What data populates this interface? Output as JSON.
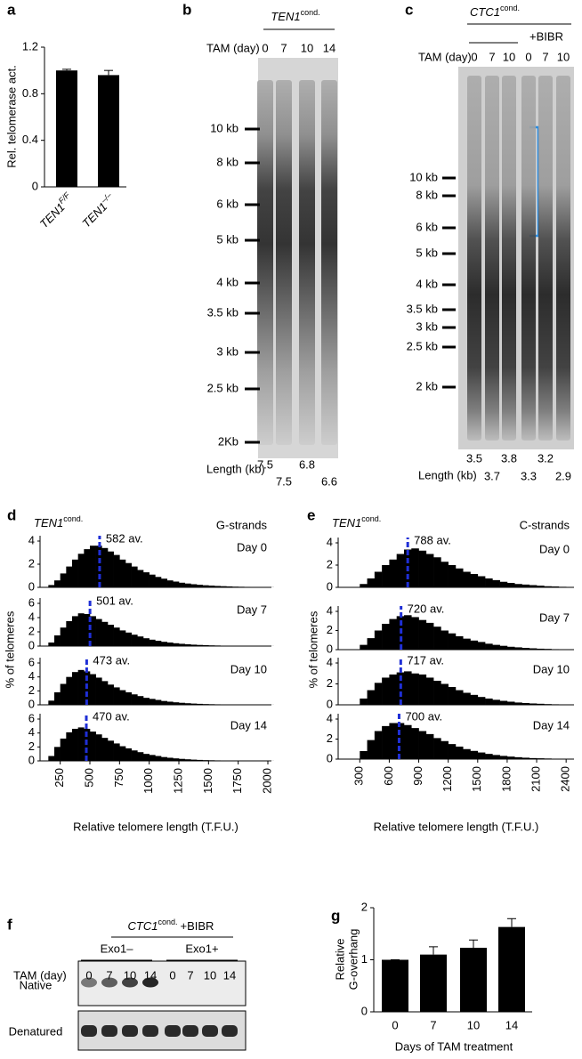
{
  "chart_data": [
    {
      "panel_label": "a",
      "type": "bar",
      "categories": [
        "TEN1",
        "TEN1"
      ],
      "category_superscripts": [
        "F/F",
        "–/–"
      ],
      "values": [
        1,
        0.96
      ],
      "errors": [
        0.01,
        0.04
      ],
      "color": "#000000",
      "ylabel": "Rel. telomerase act.",
      "ylim": [
        0,
        1.2
      ],
      "yticks": [
        0,
        0.4,
        0.8,
        1.2
      ]
    },
    {
      "panel_label": "d",
      "type": "histogram",
      "title": "TEN1",
      "title_superscript": "cond.",
      "subtitle": "G-strands",
      "xlabel": "Relative telomere length (T.F.U.)",
      "ylabel": "% of telomeres",
      "color": "#000000",
      "average_color": "#1f2fd6",
      "bins": [
        150,
        200,
        250,
        300,
        350,
        400,
        450,
        500,
        550,
        600,
        650,
        700,
        750,
        800,
        850,
        900,
        950,
        1000,
        1050,
        1100,
        1150,
        1200,
        1250,
        1300,
        1350,
        1400,
        1450,
        1500,
        1550,
        1600,
        1650,
        1700,
        1750,
        1800,
        1850,
        1900,
        1950,
        2000,
        2050
      ],
      "xlim": [
        80,
        2030
      ],
      "xticks": [
        250,
        500,
        750,
        1000,
        1250,
        1500,
        1750,
        2000
      ],
      "panels": [
        {
          "label": "Day 0",
          "average": 582,
          "average_label": "582 av.",
          "ylim": [
            0,
            4
          ],
          "yticks": [
            0,
            2,
            4
          ],
          "values": [
            0.2,
            0.6,
            1.2,
            1.8,
            2.4,
            2.9,
            3.3,
            3.6,
            3.6,
            3.4,
            3.1,
            2.8,
            2.4,
            2.1,
            1.8,
            1.5,
            1.3,
            1.1,
            0.9,
            0.75,
            0.6,
            0.5,
            0.4,
            0.33,
            0.27,
            0.22,
            0.18,
            0.15,
            0.12,
            0.1,
            0.08,
            0.06,
            0.05,
            0.04,
            0.03,
            0.02,
            0.02,
            0.01
          ]
        },
        {
          "label": "Day 7",
          "average": 501,
          "average_label": "501 av.",
          "ylim": [
            0,
            6
          ],
          "yticks": [
            0,
            2,
            4,
            6
          ],
          "values": [
            0.5,
            1.5,
            2.6,
            3.5,
            4.2,
            4.6,
            4.5,
            4.2,
            3.8,
            3.4,
            3.0,
            2.6,
            2.2,
            1.9,
            1.6,
            1.35,
            1.1,
            0.9,
            0.75,
            0.6,
            0.5,
            0.4,
            0.32,
            0.26,
            0.2,
            0.16,
            0.13,
            0.1,
            0.08,
            0.06,
            0.05,
            0.04,
            0.03,
            0.02,
            0.02,
            0.01,
            0.01,
            0.01
          ]
        },
        {
          "label": "Day 10",
          "average": 473,
          "average_label": "473 av.",
          "ylim": [
            0,
            6
          ],
          "yticks": [
            0,
            2,
            4,
            6
          ],
          "values": [
            0.6,
            1.8,
            3.0,
            4.0,
            4.7,
            5.0,
            4.8,
            4.4,
            3.9,
            3.4,
            2.9,
            2.5,
            2.1,
            1.8,
            1.5,
            1.25,
            1.0,
            0.85,
            0.7,
            0.55,
            0.45,
            0.36,
            0.29,
            0.23,
            0.18,
            0.14,
            0.11,
            0.09,
            0.07,
            0.05,
            0.04,
            0.03,
            0.02,
            0.02,
            0.01,
            0.01,
            0.01,
            0.01
          ]
        },
        {
          "label": "Day 14",
          "average": 470,
          "average_label": "470 av.",
          "ylim": [
            0,
            6
          ],
          "yticks": [
            0,
            2,
            4,
            6
          ],
          "values": [
            0.7,
            2.0,
            3.2,
            4.1,
            4.6,
            4.8,
            4.6,
            4.2,
            3.8,
            3.3,
            2.9,
            2.5,
            2.1,
            1.8,
            1.5,
            1.25,
            1.0,
            0.85,
            0.7,
            0.55,
            0.45,
            0.36,
            0.29,
            0.23,
            0.18,
            0.14,
            0.11,
            0.09,
            0.07,
            0.05,
            0.04,
            0.03,
            0.02,
            0.02,
            0.01,
            0.01,
            0.01,
            0.01
          ]
        }
      ]
    },
    {
      "panel_label": "e",
      "type": "histogram",
      "title": "TEN1",
      "title_superscript": "cond.",
      "subtitle": "C-strands",
      "xlabel": "Relative telomere length (T.F.U.)",
      "ylabel": "% of telomeres",
      "color": "#000000",
      "average_color": "#1f2fd6",
      "bins": [
        300,
        375,
        450,
        525,
        600,
        675,
        750,
        825,
        900,
        975,
        1050,
        1125,
        1200,
        1275,
        1350,
        1425,
        1500,
        1575,
        1650,
        1725,
        1800,
        1875,
        1950,
        2025,
        2100,
        2175,
        2250,
        2325,
        2400
      ],
      "xlim": [
        80,
        2480
      ],
      "xticks": [
        300,
        600,
        900,
        1200,
        1500,
        1800,
        2100,
        2400
      ],
      "panels": [
        {
          "label": "Day 0",
          "average": 788,
          "average_label": "788 av.",
          "ylim": [
            0,
            4
          ],
          "yticks": [
            0,
            2,
            4
          ],
          "values": [
            0.3,
            0.8,
            1.4,
            2.0,
            2.5,
            3.0,
            3.4,
            3.5,
            3.3,
            3.0,
            2.7,
            2.3,
            2.0,
            1.7,
            1.4,
            1.2,
            1.0,
            0.8,
            0.65,
            0.5,
            0.4,
            0.3,
            0.25,
            0.2,
            0.15,
            0.1,
            0.08,
            0.05
          ]
        },
        {
          "label": "Day 7",
          "average": 720,
          "average_label": "720 av.",
          "ylim": [
            0,
            4
          ],
          "yticks": [
            0,
            2,
            4
          ],
          "values": [
            0.5,
            1.2,
            2.0,
            2.7,
            3.2,
            3.5,
            3.6,
            3.4,
            3.1,
            2.8,
            2.4,
            2.0,
            1.7,
            1.4,
            1.15,
            0.95,
            0.8,
            0.62,
            0.5,
            0.4,
            0.3,
            0.24,
            0.18,
            0.14,
            0.1,
            0.08,
            0.05,
            0.03
          ]
        },
        {
          "label": "Day 10",
          "average": 717,
          "average_label": "717 av.",
          "ylim": [
            0,
            4
          ],
          "yticks": [
            0,
            2,
            4
          ],
          "values": [
            0.6,
            1.4,
            2.1,
            2.6,
            2.9,
            3.1,
            3.2,
            3.0,
            2.9,
            2.6,
            2.3,
            2.0,
            1.7,
            1.4,
            1.15,
            0.95,
            0.75,
            0.6,
            0.48,
            0.38,
            0.3,
            0.22,
            0.17,
            0.13,
            0.1,
            0.07,
            0.05,
            0.03
          ]
        },
        {
          "label": "Day 14",
          "average": 700,
          "average_label": "700 av.",
          "ylim": [
            0,
            4
          ],
          "yticks": [
            0,
            2,
            4
          ],
          "values": [
            0.8,
            1.9,
            2.8,
            3.3,
            3.6,
            3.6,
            3.4,
            3.1,
            2.8,
            2.5,
            2.1,
            1.8,
            1.5,
            1.25,
            1.0,
            0.82,
            0.66,
            0.52,
            0.41,
            0.32,
            0.25,
            0.19,
            0.14,
            0.1,
            0.08,
            0.06,
            0.04,
            0.02
          ]
        }
      ]
    },
    {
      "panel_label": "g",
      "type": "bar",
      "categories": [
        "0",
        "7",
        "10",
        "14"
      ],
      "values": [
        1,
        1.1,
        1.23,
        1.63
      ],
      "errors": [
        0,
        0.15,
        0.15,
        0.16
      ],
      "color": "#000000",
      "ylabel": [
        "Relative",
        "G-overhang"
      ],
      "xlabel": "Days of TAM treatment",
      "ylim": [
        0,
        2
      ],
      "yticks": [
        0,
        1,
        2
      ]
    }
  ],
  "gels": {
    "b": {
      "panel_label": "b",
      "title": "TEN1",
      "title_superscript": "cond.",
      "lane_header": "TAM (day)",
      "lanes": [
        "0",
        "7",
        "10",
        "14"
      ],
      "markers": [
        "10 kb",
        "8 kb",
        "6 kb",
        "5 kb",
        "4 kb",
        "3.5 kb",
        "3 kb",
        "2.5 kb",
        "2Kb"
      ],
      "length_label": "Length (kb)",
      "lengths": [
        7.5,
        7.5,
        6.8,
        6.6
      ]
    },
    "c": {
      "panel_label": "c",
      "title": "CTC1",
      "title_superscript": "cond.",
      "group_label": "+BIBR",
      "lane_header": "TAM (day)",
      "lanes": [
        "0",
        "7",
        "10",
        "0",
        "7",
        "10"
      ],
      "markers": [
        "10 kb",
        "8 kb",
        "6 kb",
        "5 kb",
        "4 kb",
        "3.5 kb",
        "3 kb",
        "2.5 kb",
        "2 kb"
      ],
      "length_label": "Length (kb)",
      "lengths": [
        3.5,
        3.7,
        3.8,
        3.3,
        3.2,
        2.9
      ]
    },
    "f": {
      "panel_label": "f",
      "title": "CTC1",
      "title_superscript": "cond.",
      "title_suffix": "+BIBR",
      "groups": [
        "Exo1–",
        "Exo1+"
      ],
      "lane_header": "TAM (day)",
      "lanes": [
        "0",
        "7",
        "10",
        "14",
        "0",
        "7",
        "10",
        "14"
      ],
      "rows": [
        "Native",
        "Denatured"
      ]
    }
  }
}
